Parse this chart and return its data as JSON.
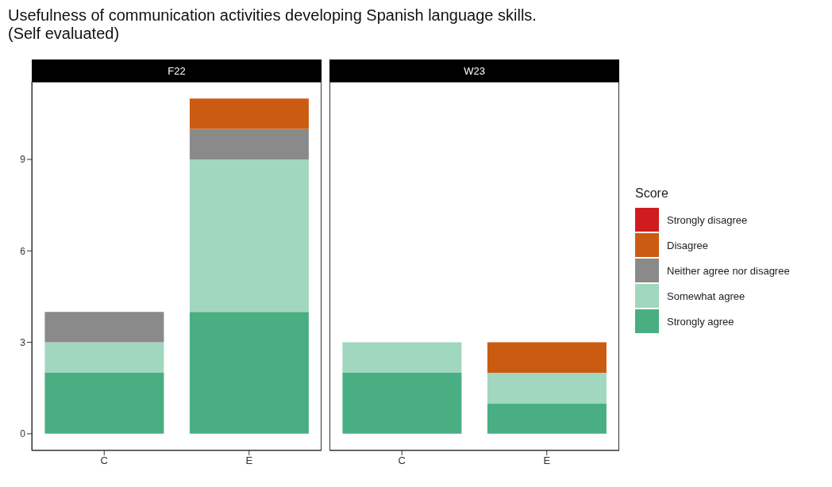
{
  "chart_data": [
    {
      "type": "bar",
      "title": "Usefulness of communication activities developing Spanish language skills.\n(Self evaluated)",
      "subtitle": "F22",
      "categories": [
        "C",
        "E"
      ],
      "stacked": true,
      "ylim": [
        -0.55,
        11.55
      ],
      "yticks": [
        0,
        3,
        6,
        9
      ],
      "grid": false,
      "legend": false,
      "series": [
        {
          "color": "#4aae83",
          "values": [
            2,
            4
          ]
        },
        {
          "color": "#a1d6bf",
          "values": [
            1,
            5
          ]
        },
        {
          "color": "#8a8a8a",
          "values": [
            1,
            1
          ]
        },
        {
          "color": "#cc5b12",
          "values": [
            0,
            1
          ]
        },
        {
          "color": "#d01c1f",
          "values": [
            0,
            0
          ]
        }
      ]
    },
    {
      "type": "bar",
      "subtitle": "W23",
      "categories": [
        "C",
        "E"
      ],
      "stacked": true,
      "ylim": [
        -0.55,
        11.55
      ],
      "yticks": [
        0,
        3,
        6,
        9
      ],
      "tick_labels": "x",
      "grid": false,
      "legend": "right",
      "legend_title": "Score",
      "series": [
        {
          "name": "Strongly agree",
          "color": "#4aae83",
          "values": [
            2,
            1
          ]
        },
        {
          "name": "Somewhat agree",
          "color": "#a1d6bf",
          "values": [
            1,
            1
          ]
        },
        {
          "name": "Neither agree nor disagree",
          "color": "#8a8a8a",
          "values": [
            0,
            0
          ]
        },
        {
          "name": "Disagree",
          "color": "#cc5b12",
          "values": [
            0,
            1
          ]
        },
        {
          "name": "Strongly disagree",
          "color": "#d01c1f",
          "values": [
            0,
            0
          ]
        }
      ]
    }
  ]
}
